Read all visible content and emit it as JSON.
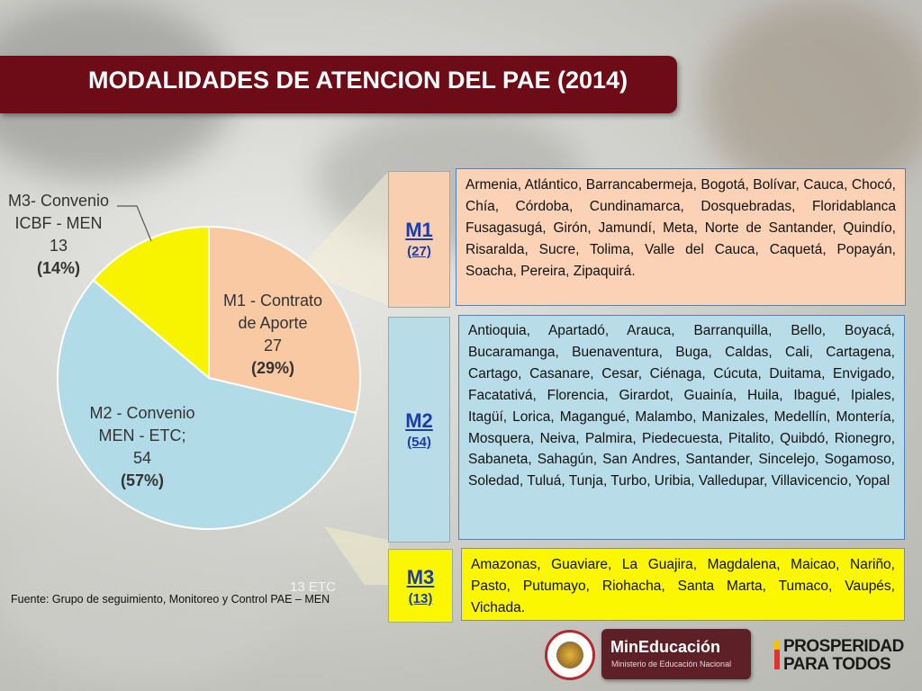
{
  "title": "MODALIDADES DE ATENCION DEL PAE (2014)",
  "chart_data": {
    "type": "pie",
    "title": "",
    "slices": [
      {
        "name": "M1 - Contrato de Aporte",
        "value": 27,
        "percent": "29%",
        "color": "#f9c9a4"
      },
      {
        "name": "M2 - Convenio MEN - ETC;",
        "value": 54,
        "percent": "57%",
        "color": "#b2dbe8"
      },
      {
        "name": "M3- Convenio ICBF - MEN",
        "value": 13,
        "percent": "14%",
        "color": "#f8f400"
      }
    ],
    "labels": {
      "m1": {
        "line1": "M1 - Contrato",
        "line2": "de Aporte",
        "value": "27",
        "pct": "(29%)"
      },
      "m2": {
        "line1": "M2 - Convenio",
        "line2": "MEN - ETC;",
        "value": "54",
        "pct": "(57%)"
      },
      "m3": {
        "line1": "M3- Convenio",
        "line2": "ICBF - MEN",
        "value": "13",
        "pct": "(14%)"
      }
    }
  },
  "source": "Fuente: Grupo de seguimiento, Monitoreo y Control PAE – MEN",
  "ghost_text": "13 ETC",
  "modalities": [
    {
      "code": "M1",
      "count": "(27)",
      "label_bg": "#f9cfb1",
      "box_bg": "#fbd2b6",
      "box_border": "#4f81bd",
      "text": "Armenia, Atlántico, Barrancabermeja,  Bogotá, Bolívar, Cauca, Chocó, Chía, Córdoba,  Cundinamarca, Dosquebradas, Floridablanca Fusagasugá, Girón, Jamundí, Meta, Norte  de Santander, Quindío, Risaralda, Sucre, Tolima, Valle del Cauca, Caquetá, Popayán, Soacha, Pereira, Zipaquirá."
    },
    {
      "code": "M2",
      "count": "(54)",
      "label_bg": "#b8dde9",
      "box_bg": "#b8dde9",
      "box_border": "#4f81bd",
      "text": "Antioquia, Apartadó, Arauca, Barranquilla, Bello, Boyacá, Bucaramanga, Buenaventura, Buga,  Caldas, Cali, Cartagena, Cartago, Casanare, Cesar, Ciénaga, Cúcuta, Duitama, Envigado, Facatativá, Florencia, Girardot, Guainía, Huila, Ibagué, Ipiales, Itagüí, Lorica, Magangué, Malambo, Manizales, Medellín, Montería, Mosquera, Neiva, Palmira, Piedecuesta, Pitalito, Quibdó, Rionegro, Sabaneta, Sahagún, San Andres, Santander, Sincelejo, Sogamoso, Soledad, Tuluá, Tunja, Turbo, Uribia, Valledupar, Villavicencio, Yopal"
    },
    {
      "code": "M3",
      "count": "(13)",
      "label_bg": "#fbf700",
      "box_bg": "#fbf700",
      "box_border": "#8a8a8a",
      "text": "Amazonas,  Guaviare, La Guajira, Magdalena, Maicao, Nariño, Pasto, Putumayo, Riohacha, Santa Marta, Tumaco, Vaupés, Vichada."
    }
  ],
  "logos": {
    "mineducacion": "MinEducación",
    "mineducacion_sub": "Ministerio de Educación Nacional",
    "prosperidad_line1": "PROSPERIDAD",
    "prosperidad_line2": "PARA TODOS"
  }
}
